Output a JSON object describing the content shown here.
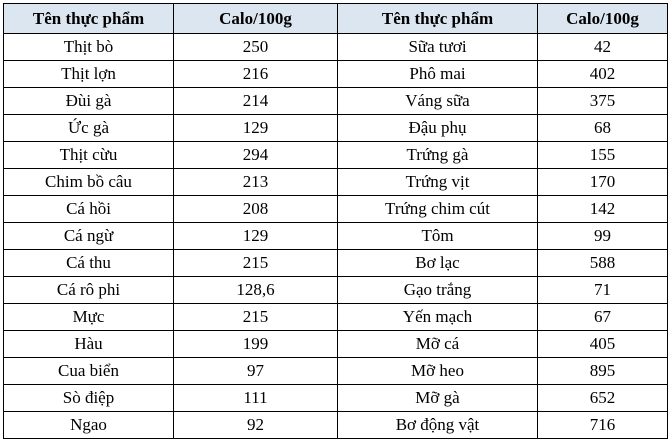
{
  "table": {
    "header": [
      "Tên thực phẩm",
      "Calo/100g",
      "Tên thực phẩm",
      "Calo/100g"
    ],
    "rows": [
      [
        "Thịt bò",
        "250",
        "Sữa tươi",
        "42"
      ],
      [
        "Thịt lợn",
        "216",
        "Phô mai",
        "402"
      ],
      [
        "Đùi gà",
        "214",
        "Váng sữa",
        "375"
      ],
      [
        "Ức gà",
        "129",
        "Đậu phụ",
        "68"
      ],
      [
        "Thịt cừu",
        "294",
        "Trứng gà",
        "155"
      ],
      [
        "Chim bồ câu",
        "213",
        "Trứng vịt",
        "170"
      ],
      [
        "Cá hồi",
        "208",
        "Trứng chim cút",
        "142"
      ],
      [
        "Cá ngừ",
        "129",
        "Tôm",
        "99"
      ],
      [
        "Cá thu",
        "215",
        "Bơ lạc",
        "588"
      ],
      [
        "Cá rô phi",
        "128,6",
        "Gạo trắng",
        "71"
      ],
      [
        "Mực",
        "215",
        "Yến mạch",
        "67"
      ],
      [
        "Hàu",
        "199",
        "Mỡ cá",
        "405"
      ],
      [
        "Cua biển",
        "97",
        "Mỡ heo",
        "895"
      ],
      [
        "Sò điệp",
        "111",
        "Mỡ gà",
        "652"
      ],
      [
        "Ngao",
        "92",
        "Bơ động vật",
        "716"
      ]
    ]
  }
}
